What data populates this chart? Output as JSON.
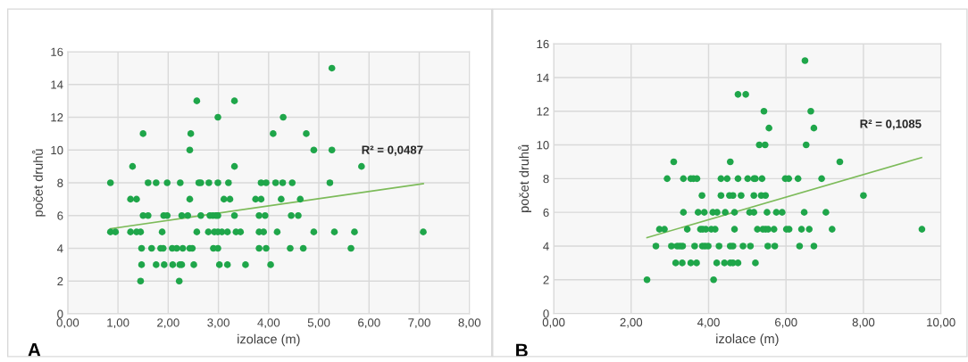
{
  "chart_data": [
    {
      "type": "scatter",
      "xlabel": "izolace (m)",
      "ylabel": "počet druhů",
      "grid": true,
      "legend": false,
      "marker": "circle",
      "xlim": [
        0,
        8
      ],
      "xticks": [
        {
          "value": 0,
          "label": "0,00"
        },
        {
          "value": 1,
          "label": "1,00"
        },
        {
          "value": 2,
          "label": "2,00"
        },
        {
          "value": 3,
          "label": "3,00"
        },
        {
          "value": 4,
          "label": "4,00"
        },
        {
          "value": 5,
          "label": "5,00"
        },
        {
          "value": 6,
          "label": "6,00"
        },
        {
          "value": 7,
          "label": "7,00"
        },
        {
          "value": 8,
          "label": "8,00"
        }
      ],
      "ylim": [
        0,
        16
      ],
      "yticks": [
        0,
        2,
        4,
        6,
        8,
        10,
        12,
        14,
        16
      ],
      "annotations": [
        "A",
        "R² = 0,0487"
      ],
      "series": [
        {
          "color": "#1fa64a",
          "x": [
            2.57,
            3.32,
            2.99,
            4.29,
            5.26,
            1.5,
            2.45,
            4.09,
            4.75,
            2.43,
            4.9,
            5.26,
            1.29,
            3.32,
            5.85,
            0.85,
            1.6,
            1.76,
            1.98,
            2.24,
            2.61,
            2.65,
            2.81,
            2.99,
            3.2,
            3.85,
            3.95,
            4.14,
            4.28,
            4.47,
            5.22,
            1.25,
            1.37,
            2.43,
            3.11,
            3.23,
            3.74,
            3.85,
            4.25,
            4.63,
            1.5,
            1.6,
            1.91,
            1.98,
            2.27,
            2.39,
            2.65,
            2.83,
            2.89,
            2.95,
            2.99,
            3.32,
            3.81,
            3.93,
            4.45,
            4.59,
            0.85,
            0.95,
            1.25,
            1.37,
            1.45,
            1.88,
            2.57,
            2.8,
            2.92,
            2.99,
            3.07,
            3.18,
            3.35,
            3.44,
            3.81,
            3.9,
            4.17,
            4.9,
            5.31,
            5.71,
            7.08,
            1.47,
            1.67,
            1.85,
            1.9,
            2.08,
            2.17,
            2.29,
            2.43,
            2.48,
            2.9,
            2.99,
            3.81,
            3.95,
            4.43,
            4.69,
            5.64,
            1.47,
            1.76,
            1.92,
            2.09,
            2.23,
            2.27,
            2.51,
            3.02,
            3.18,
            3.54,
            4.04,
            1.45,
            2.22
          ],
          "values": [
            13,
            13,
            12,
            12,
            15,
            11,
            11,
            11,
            11,
            10,
            10,
            10,
            9,
            9,
            9,
            8,
            8,
            8,
            8,
            8,
            8,
            8,
            8,
            8,
            8,
            8,
            8,
            8,
            8,
            8,
            8,
            7,
            7,
            7,
            7,
            7,
            7,
            7,
            7,
            7,
            6,
            6,
            6,
            6,
            6,
            6,
            6,
            6,
            6,
            6,
            6,
            6,
            6,
            6,
            6,
            6,
            5,
            5,
            5,
            5,
            5,
            5,
            5,
            5,
            5,
            5,
            5,
            5,
            5,
            5,
            5,
            5,
            5,
            5,
            5,
            5,
            5,
            4,
            4,
            4,
            4,
            4,
            4,
            4,
            4,
            4,
            4,
            4,
            4,
            4,
            4,
            4,
            4,
            3,
            3,
            3,
            3,
            3,
            3,
            3,
            3,
            3,
            3,
            3,
            2,
            2
          ]
        },
        {
          "type": "line",
          "marker": "none",
          "color": "#7dbb5a",
          "x": [
            0.85,
            7.08
          ],
          "values": [
            5.2,
            7.95
          ]
        }
      ]
    },
    {
      "type": "scatter",
      "xlabel": "izolace (m)",
      "ylabel": "počet druhů",
      "grid": true,
      "legend": false,
      "marker": "circle",
      "xlim": [
        0,
        10
      ],
      "xticks": [
        {
          "value": 0,
          "label": "0,00"
        },
        {
          "value": 2,
          "label": "2,00"
        },
        {
          "value": 4,
          "label": "4,00"
        },
        {
          "value": 6,
          "label": "6,00"
        },
        {
          "value": 8,
          "label": "8,00"
        },
        {
          "value": 10,
          "label": "10,00"
        }
      ],
      "ylim": [
        0,
        16
      ],
      "yticks": [
        0,
        2,
        4,
        6,
        8,
        10,
        12,
        14,
        16
      ],
      "annotations": [
        "B",
        "R² = 0,1085"
      ],
      "series": [
        {
          "color": "#1fa64a",
          "x": [
            6.49,
            4.76,
            4.96,
            5.43,
            6.64,
            5.56,
            6.72,
            5.31,
            5.46,
            6.52,
            3.1,
            4.56,
            7.39,
            2.93,
            3.35,
            3.54,
            3.61,
            3.7,
            4.32,
            4.48,
            4.76,
            5.01,
            5.17,
            5.21,
            5.38,
            5.98,
            6.07,
            6.31,
            6.92,
            3.83,
            4.32,
            4.54,
            4.63,
            4.84,
            5.17,
            5.36,
            5.47,
            8.0,
            3.35,
            3.73,
            3.89,
            4.11,
            4.22,
            4.43,
            4.67,
            5.06,
            5.17,
            5.51,
            5.75,
            5.9,
            6.47,
            7.03,
            2.73,
            2.86,
            3.45,
            3.79,
            3.85,
            3.93,
            4.07,
            4.17,
            4.67,
            5.26,
            5.4,
            5.47,
            5.54,
            5.69,
            6.01,
            6.08,
            6.4,
            6.6,
            7.19,
            9.51,
            2.64,
            3.04,
            3.19,
            3.26,
            3.33,
            3.64,
            3.84,
            3.91,
            3.99,
            4.27,
            4.56,
            4.63,
            4.89,
            5.08,
            5.53,
            5.71,
            6.35,
            6.72,
            3.15,
            3.32,
            3.54,
            3.69,
            4.21,
            4.41,
            4.56,
            4.63,
            4.76,
            5.21,
            2.41,
            4.13
          ],
          "values": [
            15,
            13,
            13,
            12,
            12,
            11,
            11,
            10,
            10,
            10,
            9,
            9,
            9,
            8,
            8,
            8,
            8,
            8,
            8,
            8,
            8,
            8,
            8,
            8,
            8,
            8,
            8,
            8,
            8,
            7,
            7,
            7,
            7,
            7,
            7,
            7,
            7,
            7,
            6,
            6,
            6,
            6,
            6,
            6,
            6,
            6,
            6,
            6,
            6,
            6,
            6,
            6,
            5,
            5,
            5,
            5,
            5,
            5,
            5,
            5,
            5,
            5,
            5,
            5,
            5,
            5,
            5,
            5,
            5,
            5,
            5,
            5,
            4,
            4,
            4,
            4,
            4,
            4,
            4,
            4,
            4,
            4,
            4,
            4,
            4,
            4,
            4,
            4,
            4,
            4,
            3,
            3,
            3,
            3,
            3,
            3,
            3,
            3,
            3,
            3,
            2,
            2
          ]
        },
        {
          "type": "line",
          "marker": "none",
          "color": "#7dbb5a",
          "x": [
            2.41,
            9.5
          ],
          "values": [
            4.5,
            9.25
          ]
        }
      ]
    }
  ]
}
